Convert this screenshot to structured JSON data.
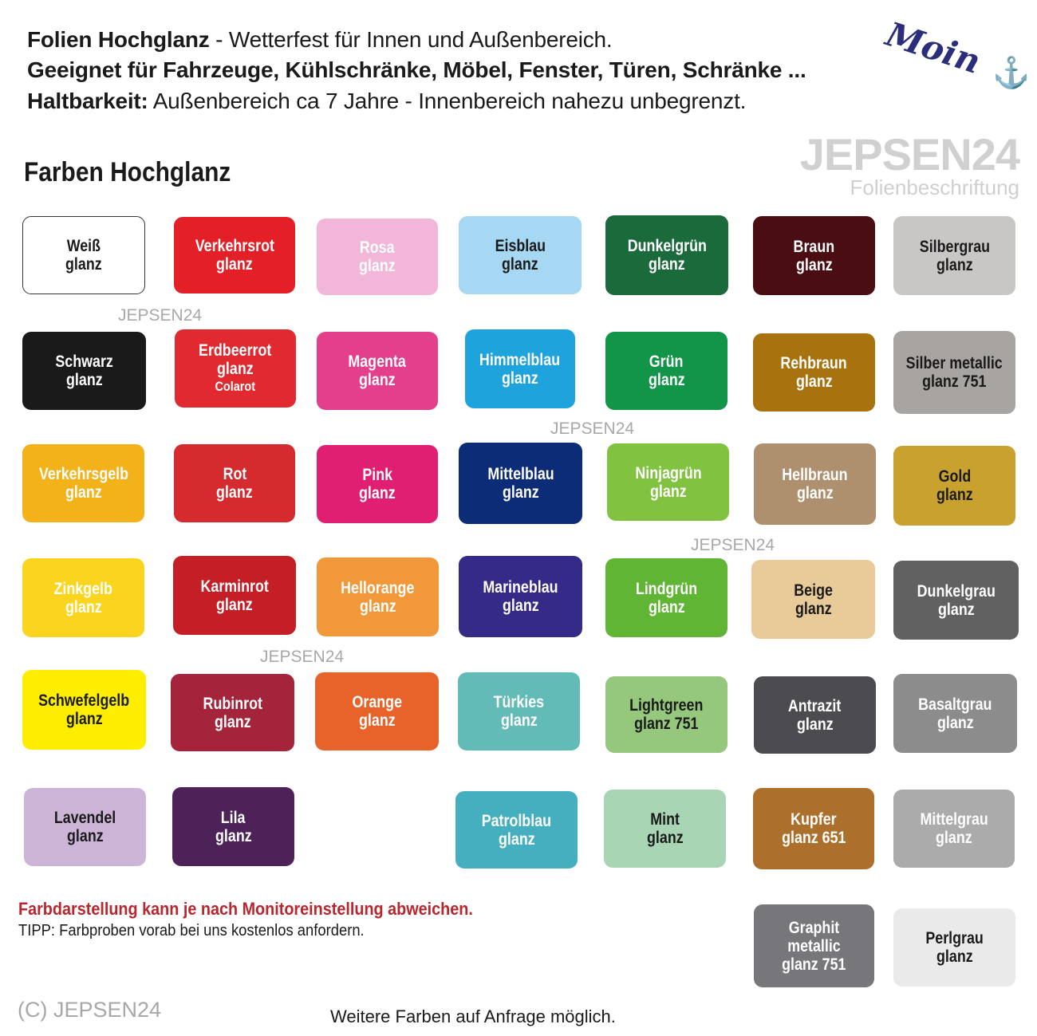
{
  "header": {
    "line1_bold": "Folien Hochglanz",
    "line1_rest": " - Wetterfest für Innen und Außenbereich.",
    "line2": "Geeignet für Fahrzeuge, Kühlschränke, Möbel, Fenster, Türen, Schränke ...",
    "line3_bold": "Haltbarkeit:",
    "line3_rest": " Außenbereich ca 7 Jahre - Innenbereich nahezu unbegrenzt."
  },
  "logo": {
    "moin": "Moin",
    "anchor_icon": "anchor-icon",
    "brand": "JEPSEN24",
    "brand_sub": "Folienbeschriftung"
  },
  "section_title": "Farben Hochglanz",
  "swatches": [
    {
      "lines": [
        "Weiß",
        "glanz"
      ],
      "color": "#ffffff",
      "text": "#1a1a1a"
    },
    {
      "lines": [
        "Verkehrsrot",
        "glanz"
      ],
      "color": "#e32028",
      "text": "#ffffff"
    },
    {
      "lines": [
        "Rosa",
        "glanz"
      ],
      "color": "#f2b6d8",
      "text": "#ffffff"
    },
    {
      "lines": [
        "Eisblau",
        "glanz"
      ],
      "color": "#a6d8f3",
      "text": "#1a1a1a"
    },
    {
      "lines": [
        "Dunkelgrün",
        "glanz"
      ],
      "color": "#1a6a3c",
      "text": "#ffffff"
    },
    {
      "lines": [
        "Braun",
        "glanz"
      ],
      "color": "#4a0e12",
      "text": "#ffffff"
    },
    {
      "lines": [
        "Silbergrau",
        "glanz"
      ],
      "color": "#c9c6c6",
      "text": "#1a1a1a"
    },
    {
      "lines": [
        "Schwarz",
        "glanz"
      ],
      "color": "#1a1a1a",
      "text": "#ffffff"
    },
    {
      "lines": [
        "Erdbeerrot",
        "glanz",
        "Colarot"
      ],
      "color": "#e02a2f",
      "text": "#ffffff"
    },
    {
      "lines": [
        "Magenta",
        "glanz"
      ],
      "color": "#e43f8c",
      "text": "#ffffff"
    },
    {
      "lines": [
        "Himmelblau",
        "glanz"
      ],
      "color": "#1ea3dc",
      "text": "#ffffff"
    },
    {
      "lines": [
        "Grün",
        "glanz"
      ],
      "color": "#129548",
      "text": "#ffffff"
    },
    {
      "lines": [
        "Rehbraun",
        "glanz"
      ],
      "color": "#a8730f",
      "text": "#ffffff"
    },
    {
      "lines": [
        "Silber metallic",
        "glanz 751"
      ],
      "color": "#a8a4a2",
      "text": "#1a1a1a"
    },
    {
      "lines": [
        "Verkehrsgelb",
        "glanz"
      ],
      "color": "#f3b21a",
      "text": "#ffffff"
    },
    {
      "lines": [
        "Rot",
        "glanz"
      ],
      "color": "#d52a2e",
      "text": "#ffffff"
    },
    {
      "lines": [
        "Pink",
        "glanz"
      ],
      "color": "#e01f72",
      "text": "#ffffff"
    },
    {
      "lines": [
        "Mittelblau",
        "glanz"
      ],
      "color": "#0d2c78",
      "text": "#ffffff"
    },
    {
      "lines": [
        "Ninjagrün",
        "glanz"
      ],
      "color": "#81c241",
      "text": "#ffffff"
    },
    {
      "lines": [
        "Hellbraun",
        "glanz"
      ],
      "color": "#ae8f6e",
      "text": "#ffffff"
    },
    {
      "lines": [
        "Gold",
        "glanz"
      ],
      "color": "#c9a12e",
      "text": "#1a1a1a"
    },
    {
      "lines": [
        "Zinkgelb",
        "glanz"
      ],
      "color": "#fbd41e",
      "text": "#ffffff"
    },
    {
      "lines": [
        "Karminrot",
        "glanz"
      ],
      "color": "#c41e26",
      "text": "#ffffff"
    },
    {
      "lines": [
        "Hellorange",
        "glanz"
      ],
      "color": "#f1983a",
      "text": "#ffffff"
    },
    {
      "lines": [
        "Marineblau",
        "glanz"
      ],
      "color": "#342a87",
      "text": "#ffffff"
    },
    {
      "lines": [
        "Lindgrün",
        "glanz"
      ],
      "color": "#61b534",
      "text": "#ffffff"
    },
    {
      "lines": [
        "Beige",
        "glanz"
      ],
      "color": "#e8cb99",
      "text": "#1a1a1a"
    },
    {
      "lines": [
        "Dunkelgrau",
        "glanz"
      ],
      "color": "#616161",
      "text": "#ffffff"
    },
    {
      "lines": [
        "Schwefelgelb",
        "glanz"
      ],
      "color": "#fdee00",
      "text": "#1a1a1a"
    },
    {
      "lines": [
        "Rubinrot",
        "glanz"
      ],
      "color": "#a3243b",
      "text": "#ffffff"
    },
    {
      "lines": [
        "Orange",
        "glanz"
      ],
      "color": "#e8632a",
      "text": "#ffffff"
    },
    {
      "lines": [
        "Türkies",
        "glanz"
      ],
      "color": "#62bbb6",
      "text": "#ffffff"
    },
    {
      "lines": [
        "Lightgreen",
        "glanz 751"
      ],
      "color": "#95c87c",
      "text": "#1a1a1a"
    },
    {
      "lines": [
        "Antrazit",
        "glanz"
      ],
      "color": "#4c4c50",
      "text": "#ffffff"
    },
    {
      "lines": [
        "Basaltgrau",
        "glanz"
      ],
      "color": "#8c8c8c",
      "text": "#ffffff"
    },
    {
      "lines": [
        "Lavendel",
        "glanz"
      ],
      "color": "#cdb5d8",
      "text": "#1a1a1a"
    },
    {
      "lines": [
        "Lila",
        "glanz"
      ],
      "color": "#4c2259",
      "text": "#ffffff"
    },
    {
      "lines": [
        "Patrolblau",
        "glanz"
      ],
      "color": "#46afbf",
      "text": "#ffffff"
    },
    {
      "lines": [
        "Mint",
        "glanz"
      ],
      "color": "#a8d6b4",
      "text": "#1a1a1a"
    },
    {
      "lines": [
        "Kupfer",
        "glanz 651"
      ],
      "color": "#ad6f2c",
      "text": "#ffffff"
    },
    {
      "lines": [
        "Mittelgrau",
        "glanz"
      ],
      "color": "#ababab",
      "text": "#ffffff"
    },
    {
      "lines": [
        "Graphit metallic",
        "glanz 751"
      ],
      "color": "#77767a",
      "text": "#ffffff"
    },
    {
      "lines": [
        "Perlgrau",
        "glanz"
      ],
      "color": "#eaeaea",
      "text": "#1a1a1a"
    }
  ],
  "watermark": "JEPSEN24",
  "footer": {
    "warning": "Farbdarstellung kann je nach Monitoreinstellung abweichen.",
    "tip": "TIPP: Farbproben vorab bei uns kostenlos anfordern.",
    "copyright": "(C) JEPSEN24",
    "more_colors": "Weitere Farben auf Anfrage möglich."
  }
}
